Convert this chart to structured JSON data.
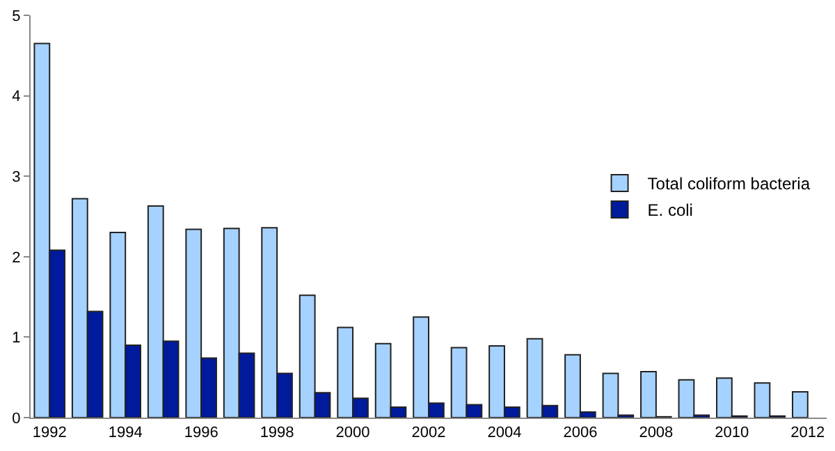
{
  "chart_data": {
    "type": "bar",
    "categories": [
      "1992",
      null,
      "1994",
      null,
      "1996",
      null,
      "1998",
      null,
      "2000",
      null,
      "2002",
      null,
      "2004",
      null,
      "2006",
      null,
      "2008",
      null,
      "2010",
      null,
      "2012"
    ],
    "series": [
      {
        "name": "Total coliform bacteria",
        "color": "#a6d2ff",
        "values": [
          4.65,
          2.72,
          2.3,
          2.63,
          2.34,
          2.35,
          2.36,
          1.52,
          1.12,
          0.92,
          1.25,
          0.87,
          0.89,
          0.98,
          0.78,
          0.55,
          0.57,
          0.47,
          0.49,
          0.43,
          0.32
        ]
      },
      {
        "name": "E. coli",
        "color": "#001a9c",
        "values": [
          2.08,
          1.32,
          0.9,
          0.95,
          0.74,
          0.8,
          0.55,
          0.31,
          0.24,
          0.13,
          0.18,
          0.16,
          0.13,
          0.15,
          0.07,
          0.03,
          0.01,
          0.03,
          0.02,
          0.02,
          null
        ]
      }
    ],
    "ylim": [
      0,
      5
    ],
    "yticks": [
      0,
      1,
      2,
      3,
      4,
      5
    ],
    "legend": "right"
  }
}
